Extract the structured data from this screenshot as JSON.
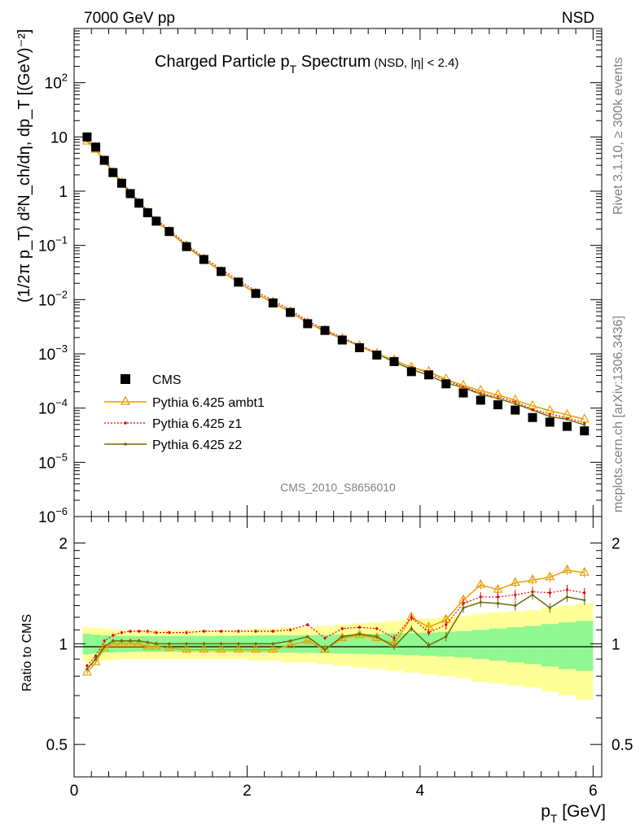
{
  "header": {
    "left": "7000 GeV pp",
    "right": "NSD"
  },
  "side_labels": {
    "rivet": "Rivet 3.1.10, ≥ 300k events",
    "source": "mcplots.cern.ch [arXiv:1306.3436]"
  },
  "watermark": "CMS_2010_S8656010",
  "chart_data": [
    {
      "type": "scatter",
      "title_main": "Charged Particle p",
      "title_sub": "T",
      "title_rest": " Spectrum",
      "title_qual": "(NSD, |η| < 2.4)",
      "ylabel": "(1/2π p_T) d²N_ch/dη, dp_T [(GeV)⁻²]",
      "xlabel": "p_T [GeV]",
      "y_scale": "log",
      "ylim": [
        1e-06,
        1000
      ],
      "xlim": [
        0,
        6.1
      ],
      "y_ticks": [
        {
          "v": 100,
          "base": "10",
          "exp": "2"
        },
        {
          "v": 10,
          "base": "10",
          "exp": ""
        },
        {
          "v": 1,
          "base": "1",
          "exp": ""
        },
        {
          "v": 0.1,
          "base": "10",
          "exp": "−1"
        },
        {
          "v": 0.01,
          "base": "10",
          "exp": "−2"
        },
        {
          "v": 0.001,
          "base": "10",
          "exp": "−3"
        },
        {
          "v": 0.0001,
          "base": "10",
          "exp": "−4"
        },
        {
          "v": 1e-05,
          "base": "10",
          "exp": "−5"
        },
        {
          "v": 1e-06,
          "base": "10",
          "exp": "−6"
        }
      ],
      "legend_position": "lower-left",
      "x": [
        0.15,
        0.25,
        0.35,
        0.45,
        0.55,
        0.65,
        0.75,
        0.85,
        0.95,
        1.1,
        1.3,
        1.5,
        1.7,
        1.9,
        2.1,
        2.3,
        2.5,
        2.7,
        2.9,
        3.1,
        3.3,
        3.5,
        3.7,
        3.9,
        4.1,
        4.3,
        4.5,
        4.7,
        4.9,
        5.1,
        5.3,
        5.5,
        5.7,
        5.9
      ],
      "series": [
        {
          "name": "CMS",
          "color": "#000000",
          "marker": "square",
          "values": [
            10.0,
            6.5,
            3.7,
            2.2,
            1.4,
            0.9,
            0.6,
            0.4,
            0.28,
            0.18,
            0.095,
            0.055,
            0.033,
            0.021,
            0.013,
            0.0087,
            0.0058,
            0.0036,
            0.0027,
            0.0018,
            0.0013,
            0.00095,
            0.00072,
            0.00047,
            0.00041,
            0.00028,
            0.00019,
            0.00014,
            0.000115,
            9.2e-05,
            6.7e-05,
            5.5e-05,
            4.6e-05,
            3.8e-05
          ]
        },
        {
          "name": "Pythia 6.425 ambt1",
          "color": "#e8a000",
          "marker": "triangle",
          "values": [
            8.2,
            5.8,
            3.6,
            2.2,
            1.4,
            0.9,
            0.6,
            0.4,
            0.28,
            0.18,
            0.098,
            0.056,
            0.033,
            0.021,
            0.013,
            0.0089,
            0.0059,
            0.0037,
            0.0027,
            0.0019,
            0.0014,
            0.001,
            0.00077,
            0.00056,
            0.00047,
            0.00034,
            0.00026,
            0.00021,
            0.000175,
            0.00014,
            0.00011,
            9e-05,
            7.5e-05,
            6.2e-05
          ]
        },
        {
          "name": "Pythia 6.425 z1",
          "color": "#e8000b",
          "marker": "dot",
          "values": [
            8.6,
            6.0,
            3.8,
            2.35,
            1.5,
            0.97,
            0.65,
            0.44,
            0.3,
            0.195,
            0.103,
            0.06,
            0.036,
            0.023,
            0.0142,
            0.0097,
            0.0064,
            0.0041,
            0.0028,
            0.002,
            0.00145,
            0.00105,
            0.00075,
            0.00057,
            0.00044,
            0.00032,
            0.00025,
            0.00019,
            0.00016,
            0.00013,
            9.5e-05,
            7.8e-05,
            6.6e-05,
            5.4e-05
          ]
        },
        {
          "name": "Pythia 6.425 z2",
          "color": "#6b6b0a",
          "marker": "dot",
          "values": [
            8.4,
            5.8,
            3.6,
            2.25,
            1.43,
            0.92,
            0.61,
            0.41,
            0.28,
            0.18,
            0.096,
            0.055,
            0.033,
            0.021,
            0.013,
            0.0088,
            0.0059,
            0.0038,
            0.0026,
            0.0019,
            0.0014,
            0.001,
            0.00071,
            0.00052,
            0.0004,
            0.00029,
            0.00024,
            0.00018,
            0.00015,
            0.00012,
            9.2e-05,
            7e-05,
            6.2e-05,
            4.9e-05
          ]
        }
      ]
    },
    {
      "type": "line",
      "ylabel": "Ratio to CMS",
      "y_scale": "log",
      "ylim": [
        0.4,
        2.4
      ],
      "xlim": [
        0,
        6.1
      ],
      "y_ticks": [
        {
          "v": 2,
          "label": "2"
        },
        {
          "v": 1,
          "label": "1"
        },
        {
          "v": 0.5,
          "label": "0.5"
        }
      ],
      "x_ticks": [
        {
          "v": 0,
          "label": "0"
        },
        {
          "v": 2,
          "label": "2"
        },
        {
          "v": 4,
          "label": "4"
        },
        {
          "v": 6,
          "label": "6"
        }
      ],
      "band_inner_color": "#90f890",
      "band_outer_color": "#ffff98",
      "band_edges": [
        0.1,
        0.2,
        0.3,
        0.4,
        0.5,
        0.6,
        0.7,
        0.8,
        0.9,
        1.0,
        1.2,
        1.4,
        1.6,
        1.8,
        2.0,
        2.2,
        2.4,
        2.6,
        2.8,
        3.0,
        3.2,
        3.4,
        3.6,
        3.8,
        4.0,
        4.2,
        4.4,
        4.6,
        4.8,
        5.0,
        5.2,
        5.4,
        5.6,
        5.8,
        6.0
      ],
      "band_inner": [
        0.07,
        0.065,
        0.06,
        0.058,
        0.056,
        0.055,
        0.054,
        0.054,
        0.054,
        0.054,
        0.055,
        0.055,
        0.056,
        0.057,
        0.058,
        0.059,
        0.06,
        0.061,
        0.063,
        0.065,
        0.067,
        0.07,
        0.073,
        0.076,
        0.08,
        0.085,
        0.09,
        0.1,
        0.11,
        0.12,
        0.13,
        0.145,
        0.16,
        0.17
      ],
      "band_outer": [
        0.12,
        0.115,
        0.11,
        0.105,
        0.1,
        0.1,
        0.1,
        0.1,
        0.1,
        0.1,
        0.1,
        0.1,
        0.1,
        0.1,
        0.11,
        0.11,
        0.12,
        0.12,
        0.13,
        0.14,
        0.15,
        0.16,
        0.17,
        0.18,
        0.19,
        0.2,
        0.21,
        0.23,
        0.24,
        0.25,
        0.26,
        0.28,
        0.3,
        0.32
      ],
      "series": [
        {
          "name": "Pythia 6.425 ambt1",
          "color": "#e8a000",
          "values": [
            0.82,
            0.88,
            0.97,
            1.0,
            1.0,
            1.0,
            1.0,
            0.98,
            0.98,
            0.97,
            0.96,
            0.96,
            0.96,
            0.96,
            0.96,
            0.96,
            0.99,
            1.02,
            0.96,
            1.04,
            1.06,
            1.04,
            1.0,
            1.2,
            1.12,
            1.18,
            1.35,
            1.5,
            1.45,
            1.52,
            1.55,
            1.58,
            1.66,
            1.63
          ]
        },
        {
          "name": "Pythia 6.425 z1",
          "color": "#e8000b",
          "values": [
            0.86,
            0.92,
            1.02,
            1.06,
            1.08,
            1.09,
            1.09,
            1.09,
            1.08,
            1.08,
            1.08,
            1.09,
            1.09,
            1.09,
            1.09,
            1.09,
            1.1,
            1.14,
            1.04,
            1.11,
            1.12,
            1.11,
            1.04,
            1.2,
            1.08,
            1.14,
            1.32,
            1.38,
            1.38,
            1.4,
            1.43,
            1.42,
            1.45,
            1.42
          ]
        },
        {
          "name": "Pythia 6.425 z2",
          "color": "#6b6b0a",
          "values": [
            0.84,
            0.9,
            0.98,
            1.02,
            1.02,
            1.02,
            1.02,
            1.01,
            1.0,
            1.0,
            1.0,
            1.0,
            1.0,
            1.0,
            1.0,
            1.0,
            1.02,
            1.05,
            0.96,
            1.05,
            1.07,
            1.05,
            0.98,
            1.11,
            0.99,
            1.05,
            1.28,
            1.33,
            1.32,
            1.3,
            1.4,
            1.28,
            1.38,
            1.35
          ]
        }
      ]
    }
  ]
}
